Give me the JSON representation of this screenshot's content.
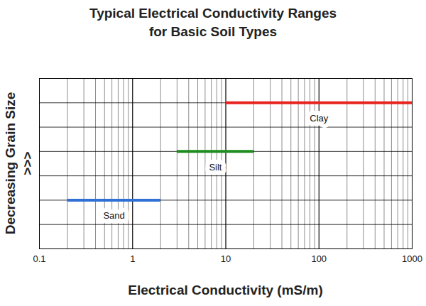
{
  "chart_data": {
    "type": "range_bar",
    "orientation": "horizontal",
    "title": "Typical Electrical Conductivity Ranges\nfor Basic Soil Types",
    "x_label": "Electrical Conductivity (mS/m)",
    "y_label": "Decreasing Grain Size\n>>>",
    "log": "x",
    "grid": true,
    "tick_labels": "x",
    "xlim": [
      0.1,
      1000
    ],
    "xticks": [
      0.1,
      1,
      10,
      100,
      1000
    ],
    "ylim": [
      0,
      7
    ],
    "yticks": [
      0,
      1,
      2,
      3,
      4,
      5,
      6,
      7
    ],
    "series": [
      {
        "name": "Sand",
        "color": "#2f6fd6",
        "values": [
          0.2,
          2
        ],
        "y": 2
      },
      {
        "name": "Silt",
        "color": "#1e8c1e",
        "values": [
          3,
          20
        ],
        "y": 4
      },
      {
        "name": "Clay",
        "color": "#e8231e",
        "values": [
          10,
          1000
        ],
        "y": 6
      }
    ]
  }
}
